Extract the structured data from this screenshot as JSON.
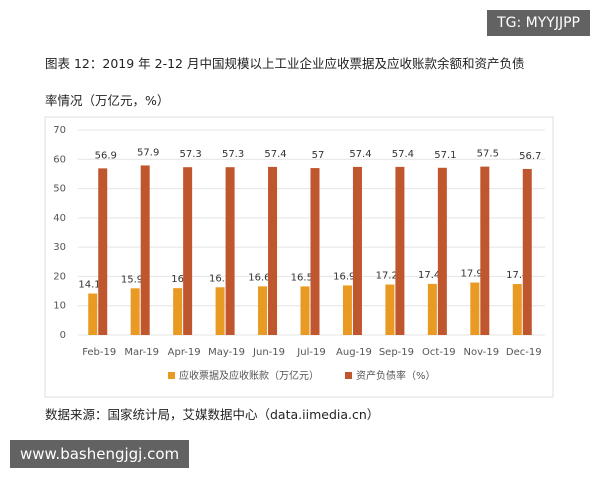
{
  "chart_data": {
    "type": "bar",
    "title": "图表 12：2019 年 2-12 月中国规模以上工业企业应收票据及应收账款余额和资产负债率情况（万亿元，%）",
    "categories": [
      "Feb-19",
      "Mar-19",
      "Apr-19",
      "May-19",
      "Jun-19",
      "Jul-19",
      "Aug-19",
      "Sep-19",
      "Oct-19",
      "Nov-19",
      "Dec-19"
    ],
    "series": [
      {
        "name": "应收票据及应收账款（万亿元）",
        "color": "#e99a22",
        "values": [
          14.16,
          15.94,
          16,
          16.3,
          16.61,
          16.59,
          16.92,
          17.23,
          17.46,
          17.92,
          17.4
        ]
      },
      {
        "name": "资产负债率（%）",
        "color": "#c0562e",
        "values": [
          56.9,
          57.9,
          57.3,
          57.3,
          57.4,
          57,
          57.4,
          57.4,
          57.1,
          57.5,
          56.7
        ]
      }
    ],
    "ylim": [
      0,
      70
    ],
    "yticks": [
      0,
      10,
      20,
      30,
      40,
      50,
      60,
      70
    ],
    "grid": true,
    "legend": "bottom",
    "source": "数据来源：国家统计局，艾媒数据中心（data.iimedia.cn）"
  },
  "watermarks": [
    "TG: MYYJJPP",
    "www.bashengjgj.com"
  ]
}
